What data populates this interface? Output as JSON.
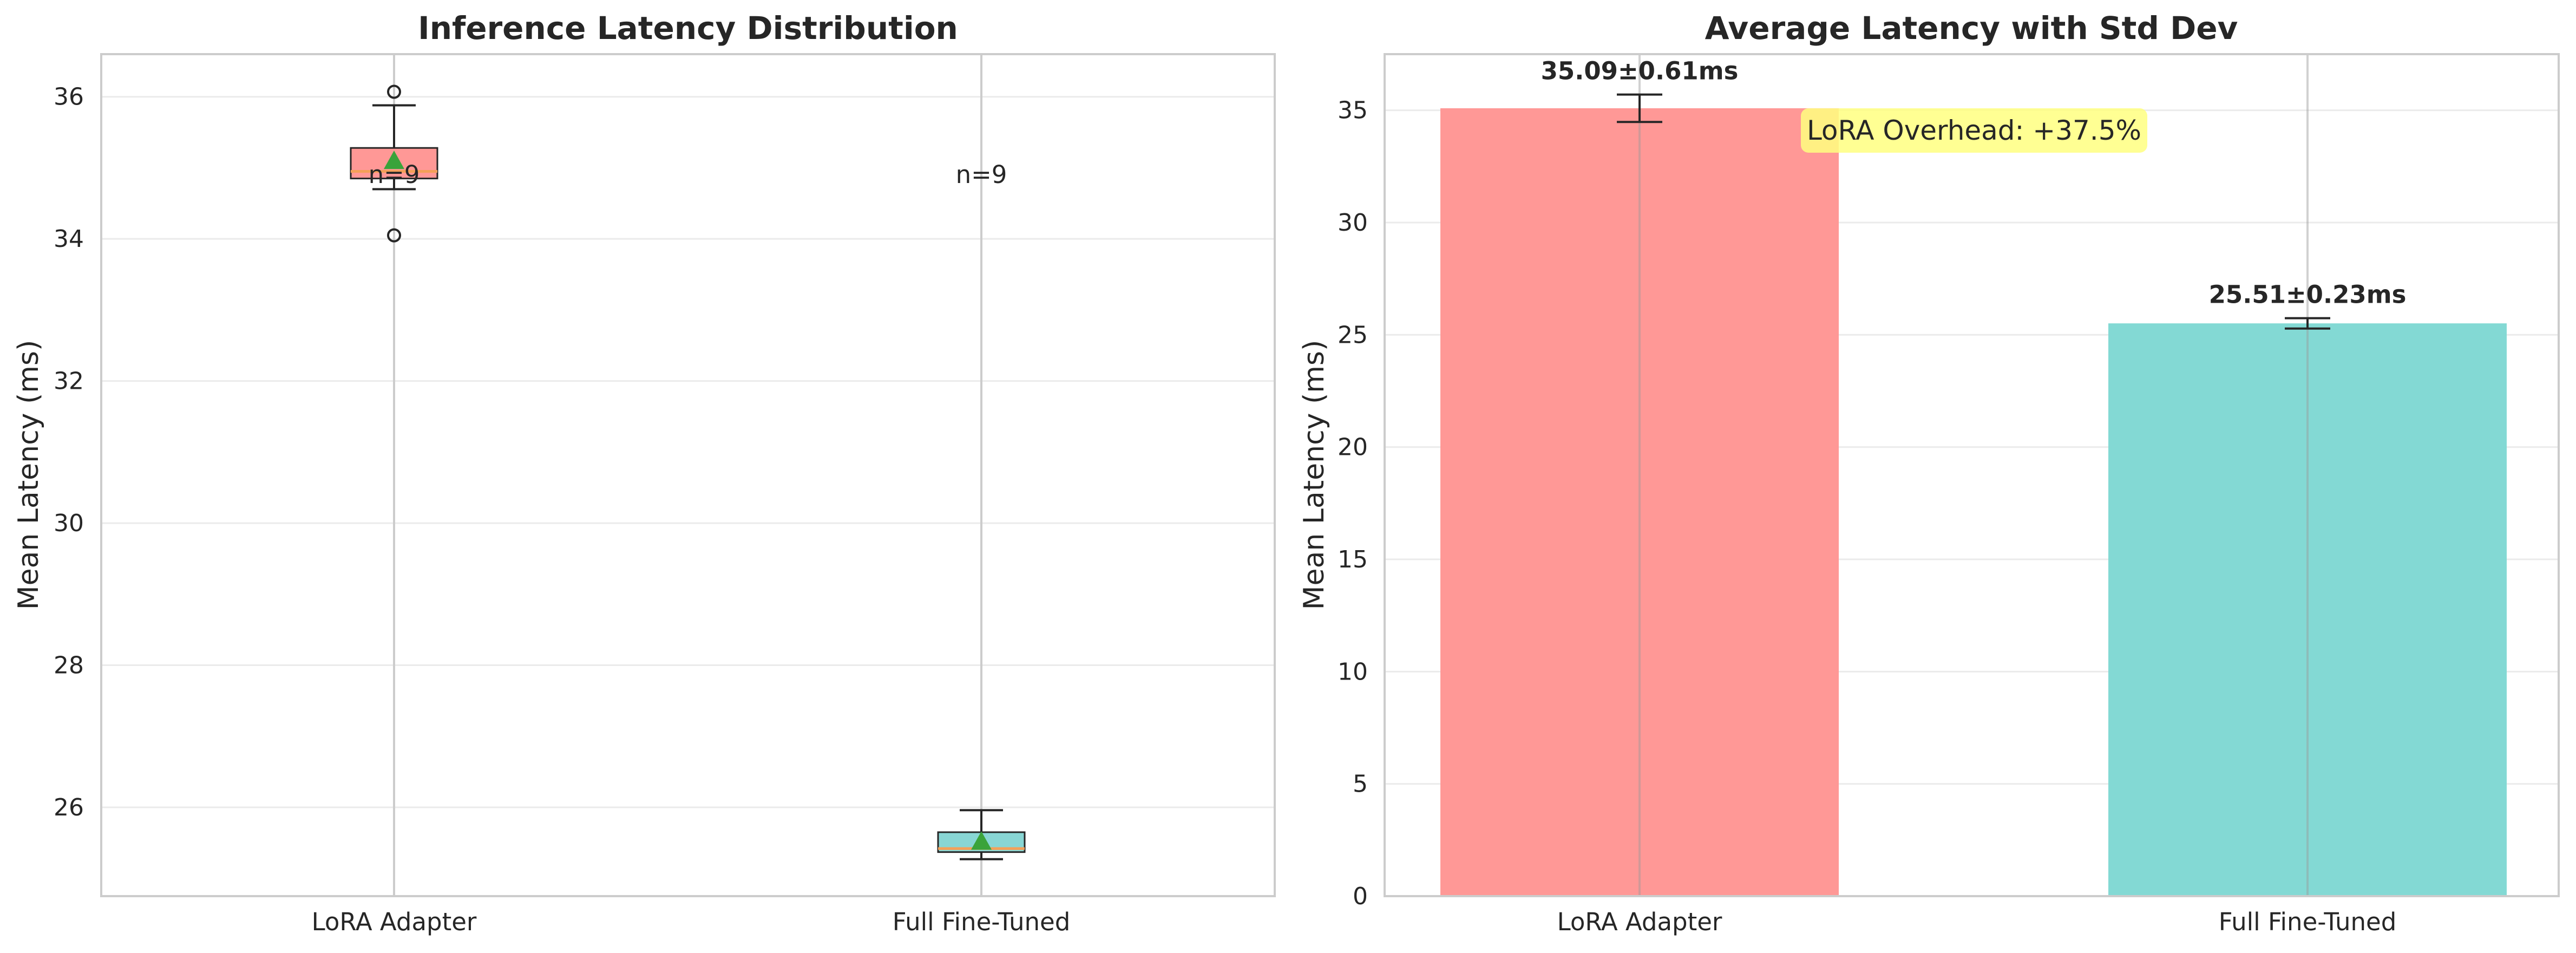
{
  "chart_data": [
    {
      "type": "box",
      "title": "Inference Latency Distribution",
      "ylabel": "Mean Latency (ms)",
      "xlabel": "",
      "ylim": [
        24.75,
        36.6
      ],
      "yticks": [
        26,
        28,
        30,
        32,
        34,
        36
      ],
      "grid": true,
      "categories": [
        "LoRA Adapter",
        "Full Fine-Tuned"
      ],
      "colors": {
        "box_fill": [
          "#ff9896",
          "#88d6d4"
        ],
        "median": "#f4a058",
        "mean_marker": "#3aa33a",
        "whisker": "#262626"
      },
      "boxes": [
        {
          "category": "LoRA Adapter",
          "whisker_low": 34.7,
          "q1": 34.85,
          "median": 34.95,
          "q3": 35.28,
          "whisker_high": 35.88,
          "mean": 35.09,
          "outliers": [
            36.07,
            34.05
          ],
          "n_label": "n=9"
        },
        {
          "category": "Full Fine-Tuned",
          "whisker_low": 25.27,
          "q1": 25.37,
          "median": 25.42,
          "q3": 25.65,
          "whisker_high": 25.96,
          "mean": 25.51,
          "outliers": [],
          "n_label": "n=9"
        }
      ]
    },
    {
      "type": "bar",
      "title": "Average Latency with Std Dev",
      "ylabel": "Mean Latency (ms)",
      "xlabel": "",
      "ylim": [
        0,
        37.5
      ],
      "yticks": [
        0,
        5,
        10,
        15,
        20,
        25,
        30,
        35
      ],
      "grid": true,
      "categories": [
        "LoRA Adapter",
        "Full Fine-Tuned"
      ],
      "values": [
        35.09,
        25.51
      ],
      "errors": [
        0.61,
        0.23
      ],
      "colors": [
        "#ff9896",
        "#83d9d4"
      ],
      "bar_labels": [
        "35.09±0.61ms",
        "25.51±0.23ms"
      ],
      "annotation": {
        "text": "LoRA Overhead: +37.5%",
        "box_color": "#ffff80"
      }
    }
  ]
}
